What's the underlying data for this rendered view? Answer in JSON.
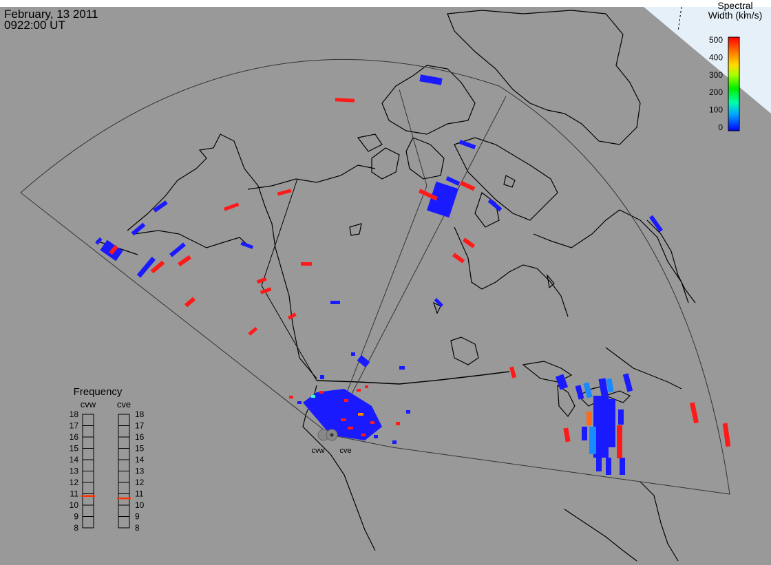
{
  "header": {
    "date": "February, 13 2011",
    "time": "0922:00 UT"
  },
  "colorbar": {
    "title_line1": "Spectral",
    "title_line2": "Width (km/s)",
    "ticks": [
      "500",
      "400",
      "300",
      "200",
      "100",
      "0"
    ],
    "range": [
      0,
      500
    ]
  },
  "radars": [
    {
      "id": "cvw",
      "label": "cvw"
    },
    {
      "id": "cve",
      "label": "cve"
    }
  ],
  "frequency": {
    "title": "Frequency",
    "columns": [
      {
        "label": "cvw",
        "value": 10.8
      },
      {
        "label": "cve",
        "value": 10.6
      }
    ],
    "ticks": [
      "18",
      "17",
      "16",
      "15",
      "14",
      "13",
      "12",
      "11",
      "10",
      "9",
      "8"
    ],
    "range": [
      8,
      18
    ]
  },
  "colors": {
    "background": "#999999",
    "ocean_corner": "#e6f0f8",
    "coast": "#000000",
    "fov": "#333333",
    "low_width": "#1a1aff",
    "high_width": "#ff1a1a",
    "freq_marker": "#ff3300"
  }
}
